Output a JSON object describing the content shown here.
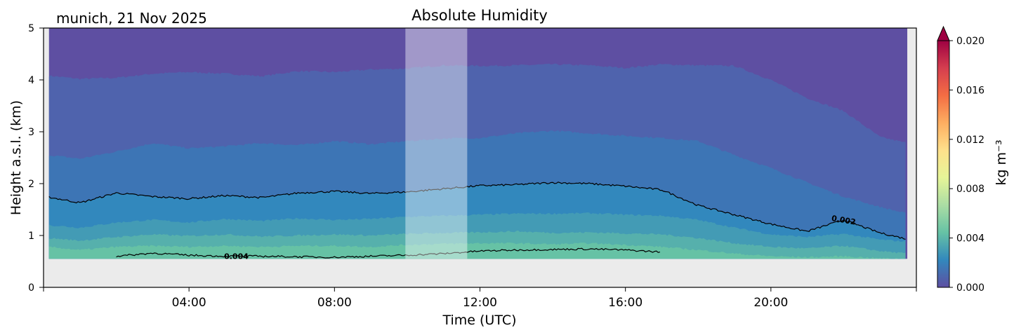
{
  "chart_data": {
    "type": "area",
    "title": "Absolute Humidity",
    "location_date": "munich, 21 Nov 2025",
    "xlabel": "Time (UTC)",
    "ylabel": "Height a.s.l. (km)",
    "x_unit": "hours UTC",
    "xlim": [
      0,
      24
    ],
    "ylim": [
      0,
      5
    ],
    "x_ticks": [
      4,
      8,
      12,
      16,
      20
    ],
    "x_tick_labels": [
      "04:00",
      "08:00",
      "12:00",
      "16:00",
      "20:00"
    ],
    "y_ticks": [
      0,
      1,
      2,
      3,
      4,
      5
    ],
    "y_tick_labels": [
      "0",
      "1",
      "2",
      "3",
      "4",
      "5"
    ],
    "data_extent": {
      "time_start": 0.15,
      "time_end": 23.75,
      "height_bottom": 0.55
    },
    "ground_color": "#ebebeb",
    "shaded_gap": {
      "start": 9.95,
      "end": 11.65
    },
    "levels_kg_m3": [
      0.001,
      0.0015,
      0.002,
      0.0025,
      0.003,
      0.0035,
      0.004
    ],
    "level_heights_km": {
      "time": [
        0.15,
        1,
        2,
        3,
        4,
        5,
        6,
        7,
        8,
        9,
        10,
        11,
        12,
        13,
        14,
        15,
        16,
        17,
        18,
        19,
        20,
        21,
        22,
        23,
        23.75
      ],
      "h_0_0010": [
        4.08,
        4.02,
        4.04,
        4.12,
        4.15,
        4.12,
        4.07,
        4.17,
        4.15,
        4.2,
        4.22,
        4.28,
        4.27,
        4.28,
        4.3,
        4.28,
        4.23,
        4.3,
        4.28,
        4.27,
        4.0,
        3.65,
        3.4,
        2.9,
        2.78
      ],
      "h_0_0015": [
        2.55,
        2.48,
        2.62,
        2.78,
        2.68,
        2.72,
        2.78,
        2.74,
        2.82,
        2.76,
        2.82,
        2.87,
        2.88,
        2.97,
        3.02,
        2.97,
        2.92,
        2.88,
        2.82,
        2.55,
        2.3,
        2.02,
        1.75,
        1.55,
        1.42
      ],
      "h_0_0020": [
        1.74,
        1.63,
        1.82,
        1.75,
        1.71,
        1.77,
        1.73,
        1.82,
        1.85,
        1.81,
        1.84,
        1.9,
        1.96,
        1.98,
        2.02,
        2.0,
        1.95,
        1.88,
        1.58,
        1.4,
        1.22,
        1.08,
        1.3,
        1.05,
        0.93
      ],
      "h_0_0025": [
        1.2,
        1.15,
        1.25,
        1.3,
        1.25,
        1.32,
        1.28,
        1.33,
        1.3,
        1.32,
        1.36,
        1.38,
        1.4,
        1.42,
        1.42,
        1.43,
        1.4,
        1.38,
        1.3,
        1.15,
        1.02,
        0.97,
        1.03,
        0.92,
        0.88
      ],
      "h_0_0030": [
        0.95,
        0.9,
        0.97,
        1.02,
        0.99,
        1.02,
        0.98,
        1.0,
        1.02,
        1.0,
        1.03,
        1.05,
        1.06,
        1.08,
        1.05,
        1.06,
        1.04,
        1.02,
        0.95,
        0.85,
        0.78,
        0.75,
        0.8,
        0.7,
        0.65
      ],
      "h_0_0035": [
        0.78,
        0.72,
        0.78,
        0.8,
        0.78,
        0.8,
        0.78,
        0.8,
        0.8,
        0.78,
        0.82,
        0.84,
        0.85,
        0.85,
        0.83,
        0.85,
        0.82,
        0.78,
        0.72,
        0.65,
        0.6,
        0.58,
        0.6,
        0.56,
        0.55
      ],
      "h_0_0040": [
        null,
        null,
        0.6,
        0.66,
        0.62,
        0.6,
        0.6,
        0.59,
        0.58,
        0.6,
        0.62,
        0.65,
        0.7,
        0.72,
        0.73,
        0.74,
        0.72,
        0.68,
        null,
        null,
        null,
        null,
        null,
        null,
        null
      ]
    },
    "contour_lines": [
      {
        "level": "0.002",
        "key": "h_0_0020",
        "label": "0.002",
        "label_time": 22.0
      },
      {
        "level": "0.004",
        "key": "h_0_0040",
        "label": "0.004",
        "label_time": 5.3
      }
    ],
    "fill_colors": [
      "#5e4fa2",
      "#4f63ad",
      "#3d75b5",
      "#3288bd",
      "#439bb5",
      "#56b0ac",
      "#66c2a5"
    ],
    "colorbar": {
      "label": "kg m⁻³",
      "min": 0.0,
      "max": 0.02,
      "extend": "max",
      "ticks": [
        0.0,
        0.004,
        0.008,
        0.012,
        0.016,
        0.02
      ],
      "tick_labels": [
        "0.000",
        "0.004",
        "0.008",
        "0.012",
        "0.016",
        "0.020"
      ],
      "colors": [
        "#5e4fa2",
        "#3288bd",
        "#66c2a5",
        "#abdda4",
        "#e6f598",
        "#fee08b",
        "#fdae61",
        "#f46d43",
        "#d53e4f",
        "#9e0142"
      ]
    }
  }
}
